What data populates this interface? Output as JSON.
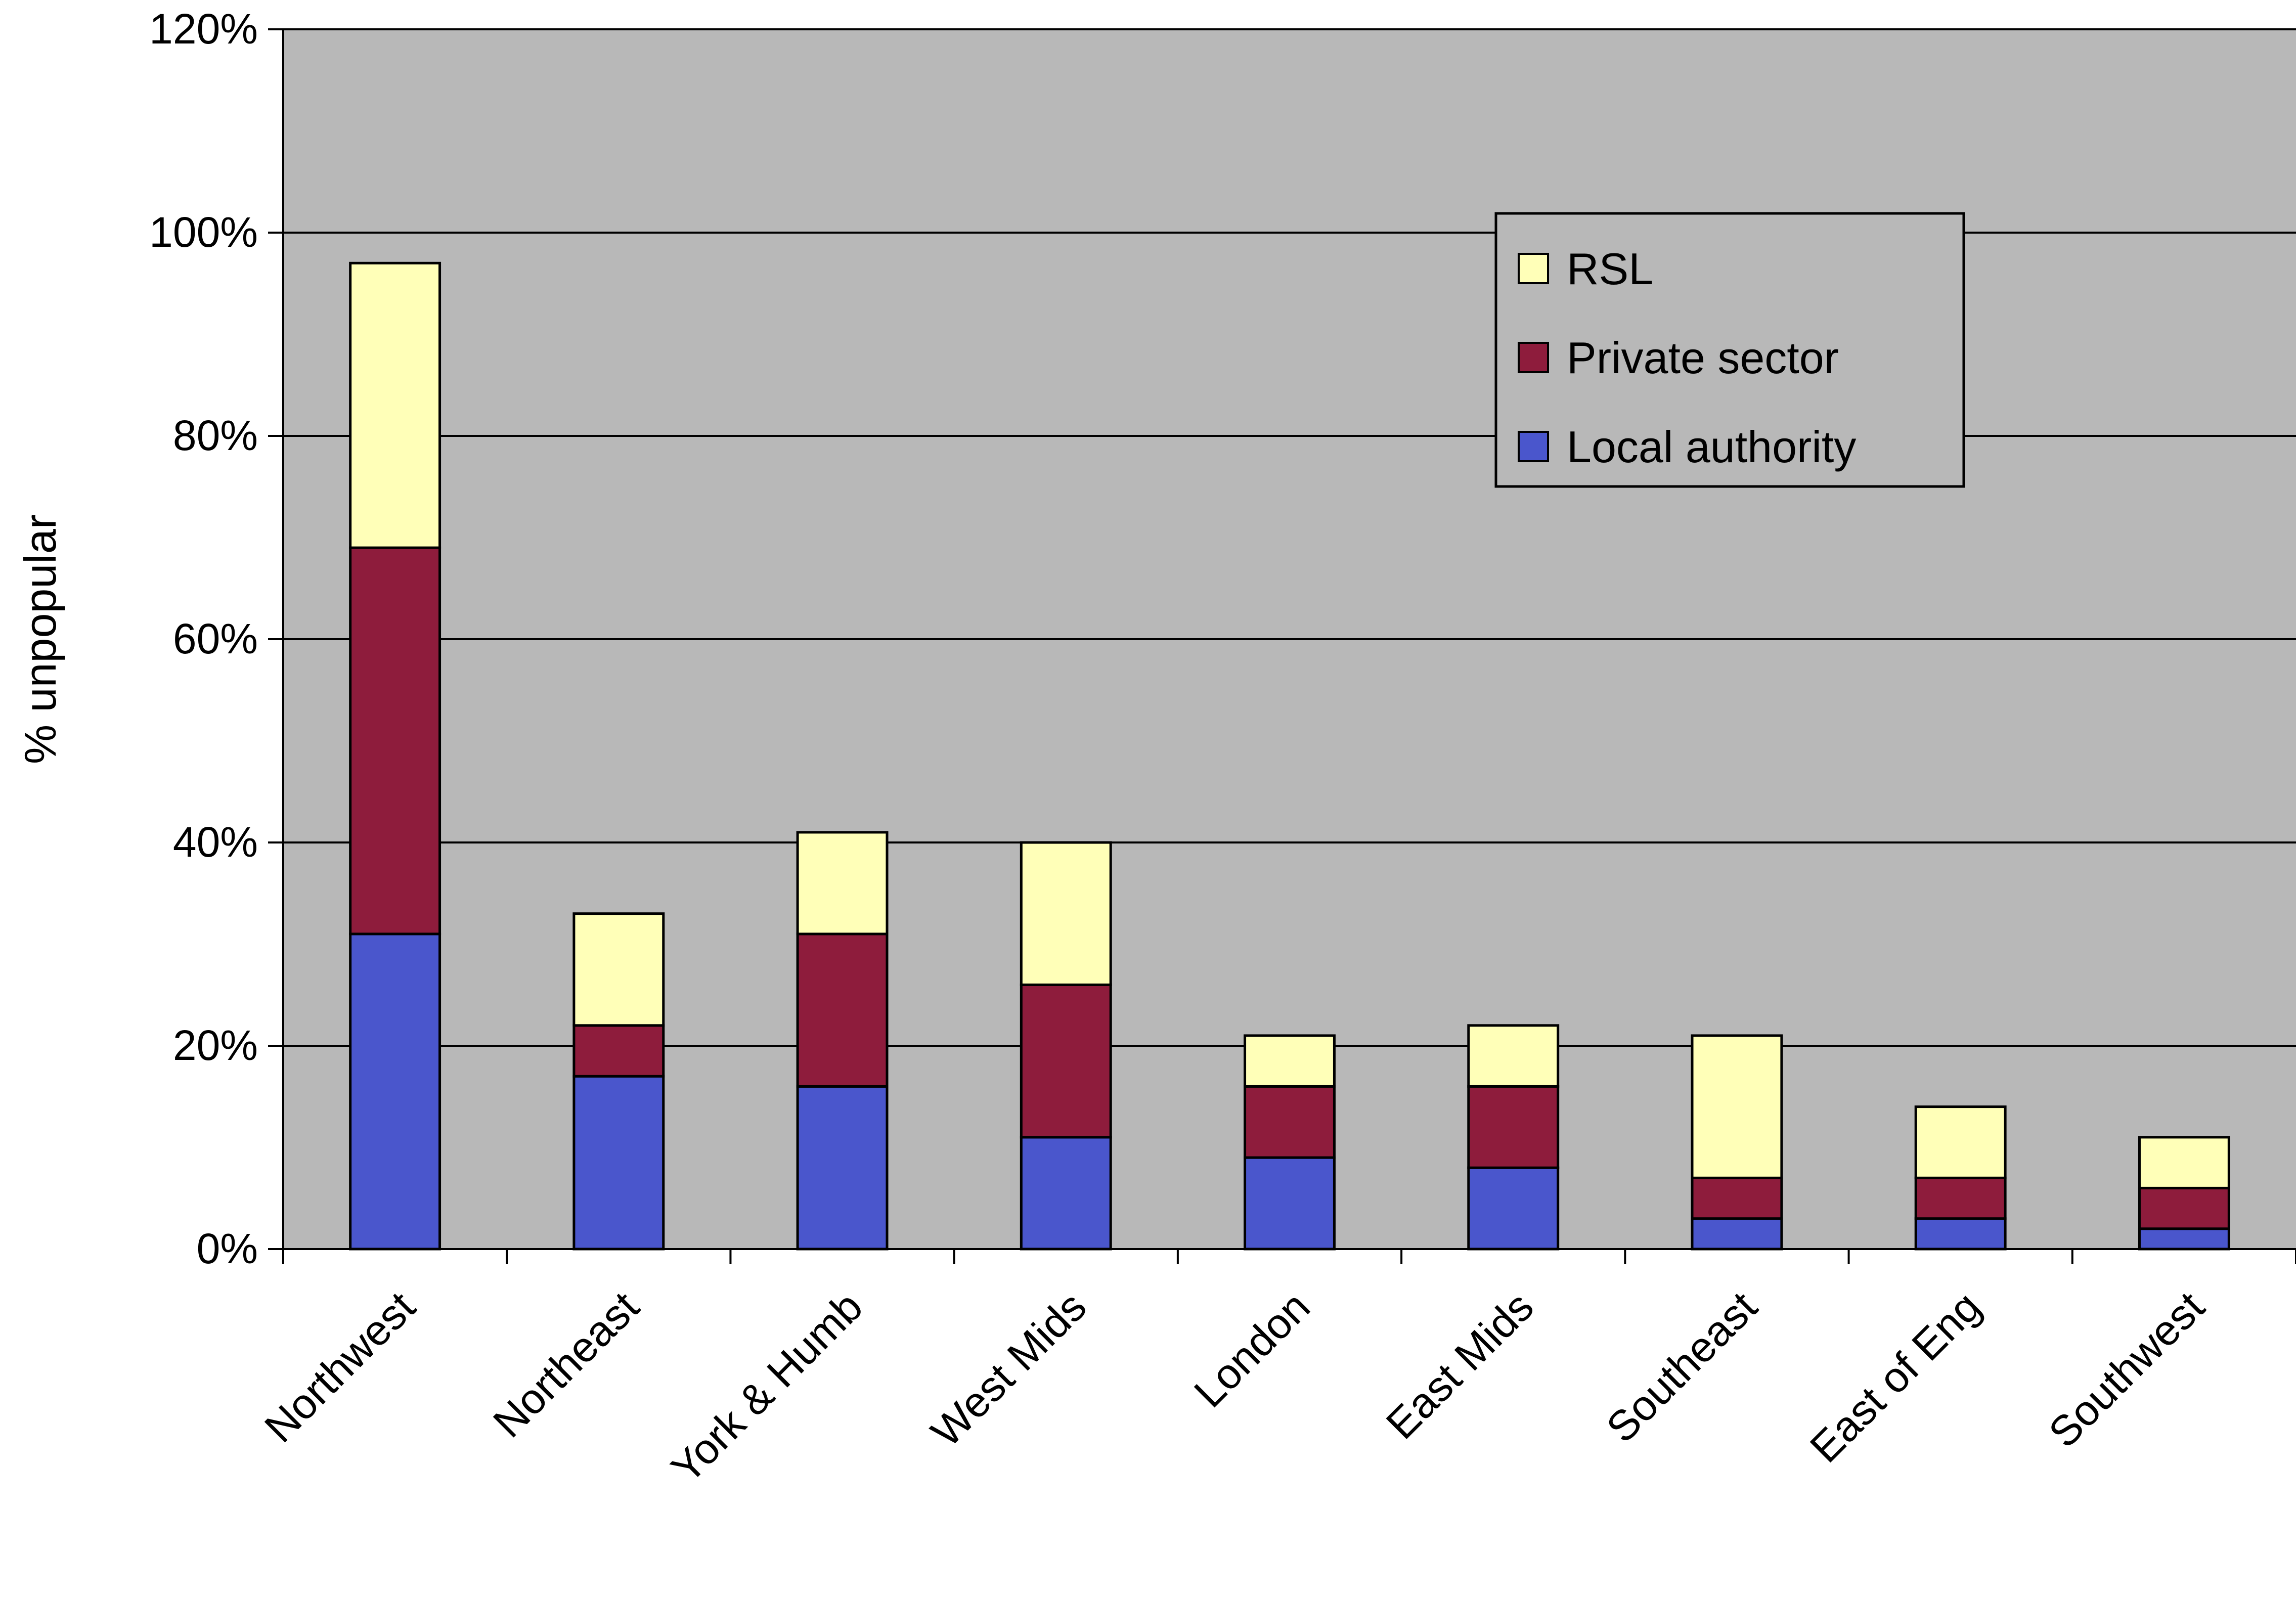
{
  "chart_data": {
    "type": "bar",
    "stacked": true,
    "categories": [
      "Northwest",
      "Northeast",
      "York & Humb",
      "West Mids",
      "London",
      "East Mids",
      "Southeast",
      "East of Eng",
      "Southwest"
    ],
    "series": [
      {
        "name": "Local authority",
        "color": "#4a56cc",
        "values": [
          31,
          17,
          16,
          11,
          9,
          8,
          3,
          3,
          2
        ]
      },
      {
        "name": "Private sector",
        "color": "#8e1c3c",
        "values": [
          38,
          5,
          15,
          15,
          7,
          8,
          4,
          4,
          4
        ]
      },
      {
        "name": "RSL",
        "color": "#ffffb8",
        "values": [
          28,
          11,
          10,
          14,
          5,
          6,
          14,
          7,
          5
        ]
      }
    ],
    "ylabel": "% unpopular",
    "ylim": [
      0,
      120
    ],
    "yticks": [
      "0%",
      "20%",
      "40%",
      "60%",
      "80%",
      "100%",
      "120%"
    ],
    "grid": true,
    "legend_position": "top-right",
    "plot_background": "#b8b8b8"
  }
}
